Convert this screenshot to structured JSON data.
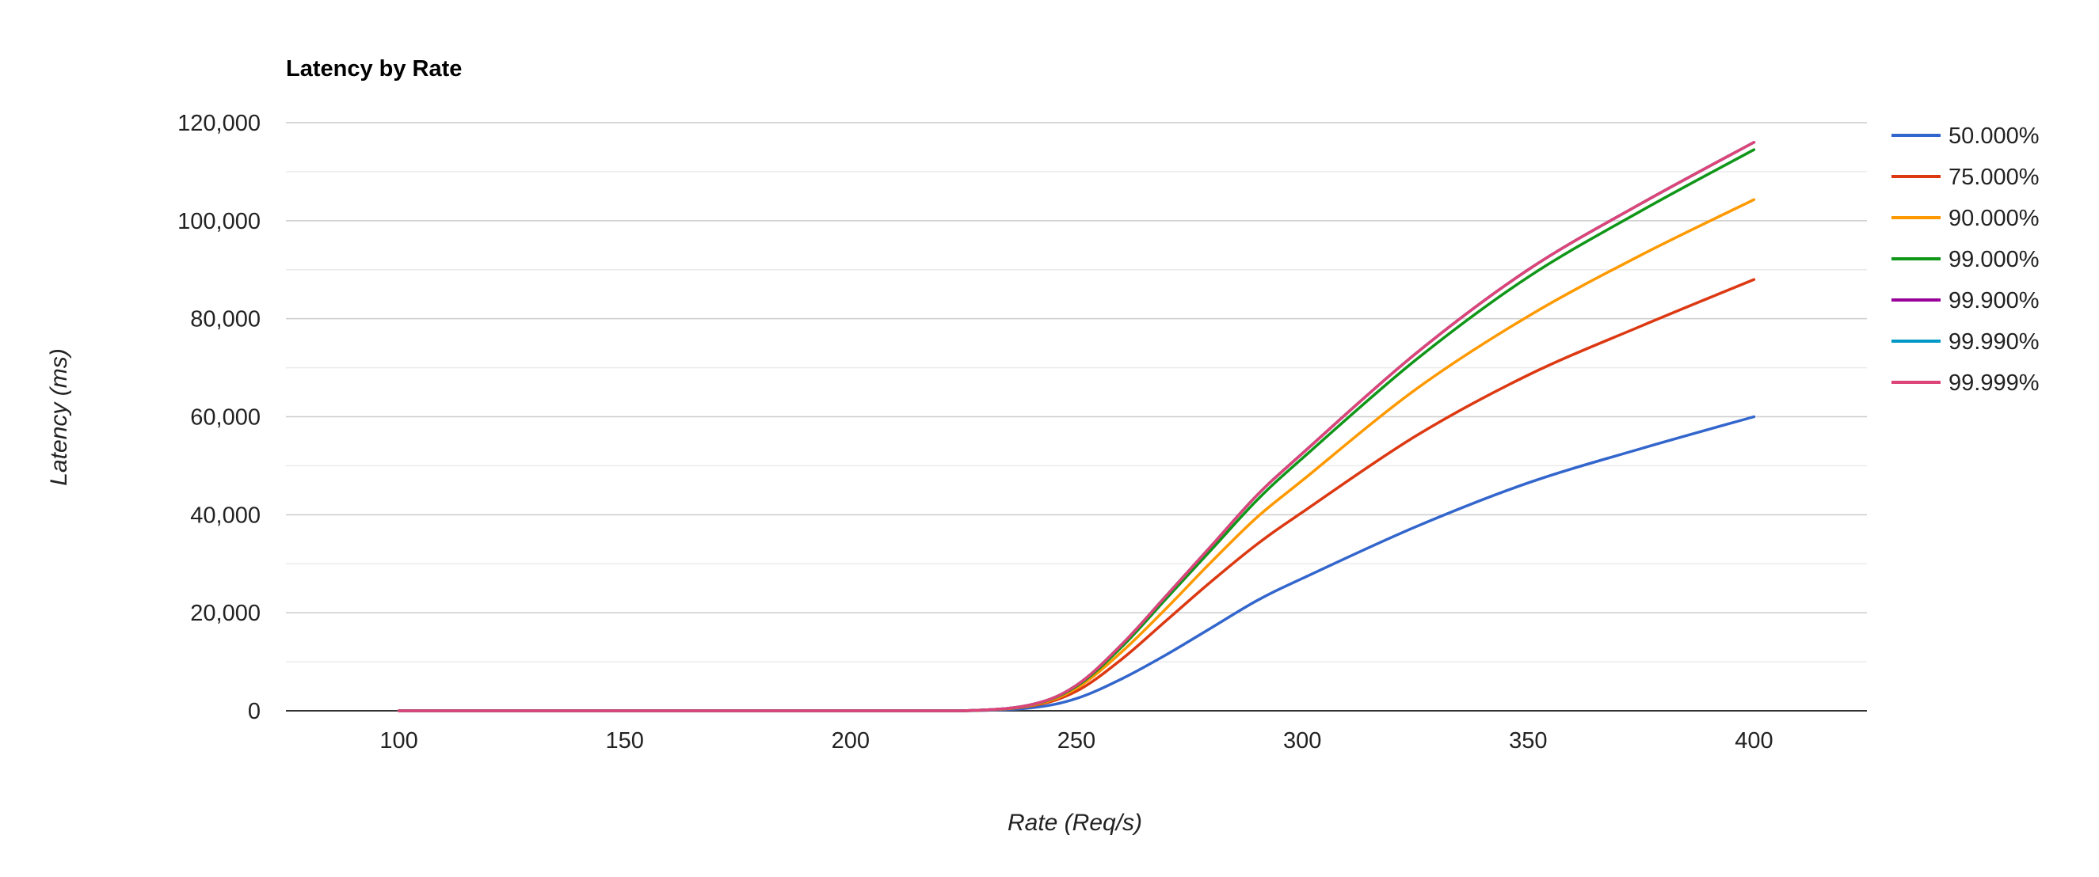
{
  "chart_data": {
    "type": "line",
    "title": "Latency by Rate",
    "xlabel": "Rate (Req/s)",
    "ylabel": "Latency (ms)",
    "xlim": [
      75,
      425
    ],
    "ylim": [
      0,
      120000
    ],
    "x_ticks": [
      "100",
      "150",
      "200",
      "250",
      "300",
      "350",
      "400"
    ],
    "y_ticks": [
      "0",
      "20,000",
      "40,000",
      "60,000",
      "80,000",
      "100,000",
      "120,000"
    ],
    "grid": true,
    "legend": "right",
    "x": [
      100,
      155,
      200,
      225,
      240,
      250,
      260,
      270,
      280,
      290,
      300,
      325,
      350,
      375,
      400
    ],
    "series": [
      {
        "name": "50.000%",
        "color": "#3366cc",
        "values": [
          0,
          0,
          0,
          0,
          600,
          2500,
          6500,
          11500,
          17000,
          22500,
          27000,
          37500,
          46500,
          53500,
          60000
        ]
      },
      {
        "name": "75.000%",
        "color": "#dc3912",
        "values": [
          0,
          0,
          0,
          0,
          1000,
          4000,
          10500,
          18500,
          26500,
          34000,
          40500,
          56000,
          68500,
          78500,
          88000
        ]
      },
      {
        "name": "90.000%",
        "color": "#ff9900",
        "values": [
          0,
          0,
          0,
          0,
          1100,
          4600,
          12000,
          21000,
          30500,
          39500,
          47000,
          65500,
          80500,
          93000,
          104300
        ]
      },
      {
        "name": "99.000%",
        "color": "#109618",
        "values": [
          0,
          0,
          0,
          0,
          1200,
          5000,
          13000,
          23000,
          33000,
          43000,
          51500,
          71500,
          88500,
          102000,
          114500
        ]
      },
      {
        "name": "99.900%",
        "color": "#990099",
        "values": [
          0,
          0,
          0,
          0,
          1250,
          5200,
          13500,
          23600,
          33800,
          44000,
          52500,
          72800,
          90000,
          103500,
          116000
        ]
      },
      {
        "name": "99.990%",
        "color": "#0099c6",
        "values": [
          0,
          0,
          0,
          0,
          1250,
          5200,
          13500,
          23600,
          33800,
          44000,
          52500,
          72800,
          90000,
          103500,
          116000
        ]
      },
      {
        "name": "99.999%",
        "color": "#dd4477",
        "values": [
          0,
          0,
          0,
          0,
          1250,
          5200,
          13500,
          23600,
          33800,
          44000,
          52500,
          72800,
          90000,
          103500,
          116000
        ]
      }
    ]
  }
}
